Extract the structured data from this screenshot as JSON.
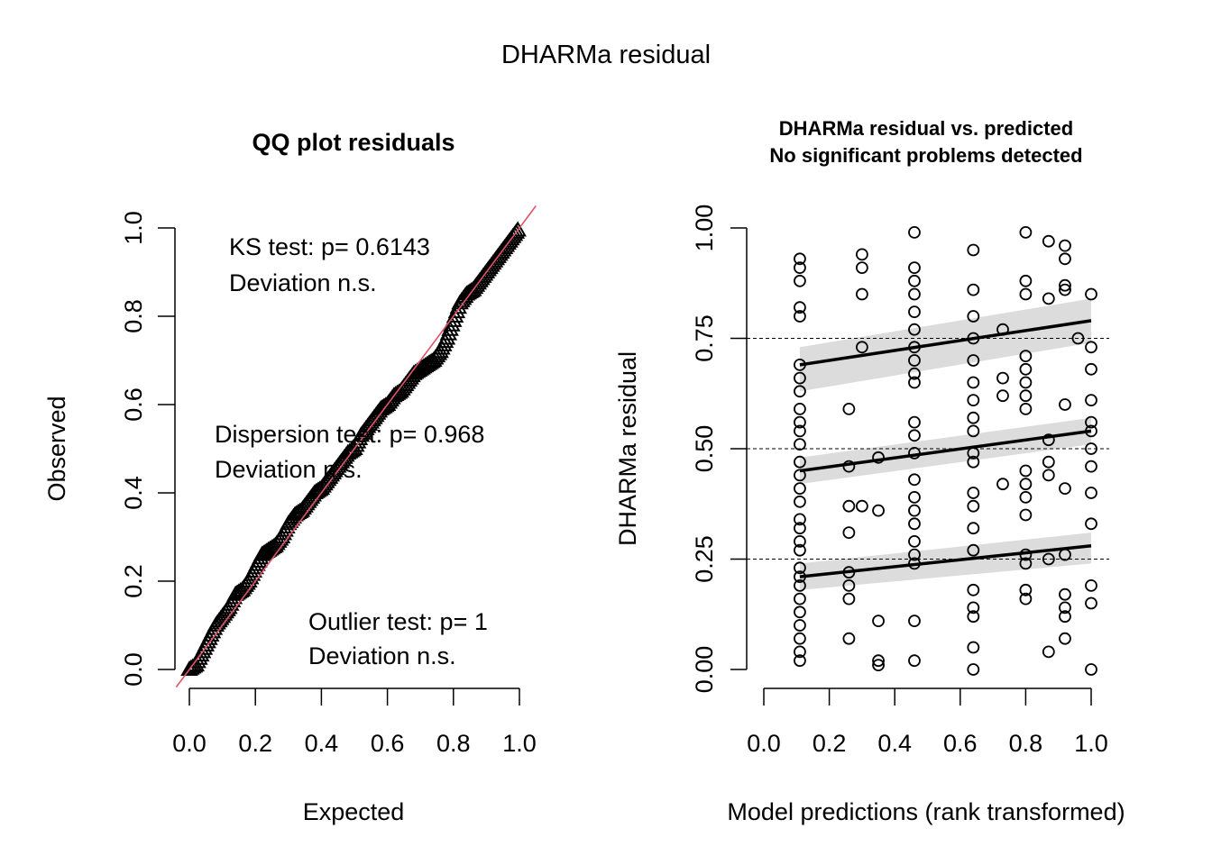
{
  "page_title": "DHARMa residual",
  "chart_data": [
    {
      "type": "scatter",
      "id": "qq",
      "title": "QQ plot residuals",
      "xlabel": "Expected",
      "ylabel": "Observed",
      "xlim": [
        0,
        1
      ],
      "ylim": [
        0,
        1
      ],
      "xticks": [
        "0.0",
        "0.2",
        "0.4",
        "0.6",
        "0.8",
        "1.0"
      ],
      "yticks": [
        "0.0",
        "0.2",
        "0.4",
        "0.6",
        "0.8",
        "1.0"
      ],
      "marker": "triangle",
      "reference_line": {
        "from": [
          0,
          0
        ],
        "to": [
          1,
          1
        ],
        "color": "#DF536B"
      },
      "expected": [
        0.0,
        0.02,
        0.04,
        0.06,
        0.08,
        0.1,
        0.12,
        0.14,
        0.16,
        0.18,
        0.2,
        0.22,
        0.24,
        0.26,
        0.28,
        0.3,
        0.32,
        0.34,
        0.36,
        0.38,
        0.4,
        0.42,
        0.44,
        0.46,
        0.48,
        0.5,
        0.52,
        0.54,
        0.56,
        0.58,
        0.6,
        0.62,
        0.64,
        0.66,
        0.68,
        0.7,
        0.72,
        0.74,
        0.76,
        0.78,
        0.8,
        0.82,
        0.84,
        0.86,
        0.88,
        0.9,
        0.92,
        0.94,
        0.96,
        0.98,
        1.0
      ],
      "observed": [
        0.0,
        0.01,
        0.04,
        0.07,
        0.1,
        0.12,
        0.14,
        0.17,
        0.18,
        0.2,
        0.23,
        0.26,
        0.27,
        0.28,
        0.3,
        0.33,
        0.35,
        0.36,
        0.38,
        0.4,
        0.41,
        0.43,
        0.45,
        0.47,
        0.49,
        0.5,
        0.53,
        0.55,
        0.57,
        0.59,
        0.6,
        0.62,
        0.63,
        0.65,
        0.67,
        0.68,
        0.69,
        0.7,
        0.72,
        0.75,
        0.79,
        0.83,
        0.85,
        0.86,
        0.88,
        0.9,
        0.92,
        0.94,
        0.96,
        0.98,
        1.0
      ],
      "annotations": [
        {
          "lines": [
            "KS test: p= 0.6143",
            "Deviation  n.s."
          ]
        },
        {
          "lines": [
            "Dispersion test: p= 0.968",
            "Deviation  n.s."
          ]
        },
        {
          "lines": [
            "Outlier test: p= 1",
            "Deviation  n.s."
          ]
        }
      ]
    },
    {
      "type": "scatter",
      "id": "resid",
      "title": "DHARMa residual vs. predicted",
      "subtitle": "No significant problems detected",
      "xlabel": "Model predictions (rank transformed)",
      "ylabel": "DHARMa residual",
      "xlim": [
        0,
        1
      ],
      "ylim": [
        0,
        1
      ],
      "xticks": [
        "0.0",
        "0.2",
        "0.4",
        "0.6",
        "0.8",
        "1.0"
      ],
      "yticks": [
        "0.00",
        "0.25",
        "0.50",
        "0.75",
        "1.00"
      ],
      "hlines": [
        0.25,
        0.5,
        0.75
      ],
      "marker": "open-circle",
      "points": [
        [
          0.11,
          0.93
        ],
        [
          0.11,
          0.91
        ],
        [
          0.11,
          0.88
        ],
        [
          0.11,
          0.82
        ],
        [
          0.11,
          0.8
        ],
        [
          0.11,
          0.69
        ],
        [
          0.11,
          0.66
        ],
        [
          0.11,
          0.63
        ],
        [
          0.11,
          0.59
        ],
        [
          0.11,
          0.56
        ],
        [
          0.11,
          0.54
        ],
        [
          0.11,
          0.51
        ],
        [
          0.11,
          0.47
        ],
        [
          0.11,
          0.44
        ],
        [
          0.11,
          0.41
        ],
        [
          0.11,
          0.38
        ],
        [
          0.11,
          0.34
        ],
        [
          0.11,
          0.32
        ],
        [
          0.11,
          0.29
        ],
        [
          0.11,
          0.27
        ],
        [
          0.11,
          0.23
        ],
        [
          0.11,
          0.21
        ],
        [
          0.11,
          0.19
        ],
        [
          0.11,
          0.16
        ],
        [
          0.11,
          0.13
        ],
        [
          0.11,
          0.1
        ],
        [
          0.11,
          0.07
        ],
        [
          0.11,
          0.04
        ],
        [
          0.11,
          0.02
        ],
        [
          0.26,
          0.59
        ],
        [
          0.26,
          0.46
        ],
        [
          0.26,
          0.37
        ],
        [
          0.26,
          0.31
        ],
        [
          0.26,
          0.22
        ],
        [
          0.26,
          0.19
        ],
        [
          0.26,
          0.16
        ],
        [
          0.26,
          0.07
        ],
        [
          0.3,
          0.94
        ],
        [
          0.3,
          0.91
        ],
        [
          0.3,
          0.85
        ],
        [
          0.3,
          0.73
        ],
        [
          0.3,
          0.37
        ],
        [
          0.35,
          0.48
        ],
        [
          0.35,
          0.36
        ],
        [
          0.35,
          0.11
        ],
        [
          0.35,
          0.02
        ],
        [
          0.35,
          0.01
        ],
        [
          0.46,
          0.99
        ],
        [
          0.46,
          0.91
        ],
        [
          0.46,
          0.88
        ],
        [
          0.46,
          0.85
        ],
        [
          0.46,
          0.81
        ],
        [
          0.46,
          0.77
        ],
        [
          0.46,
          0.73
        ],
        [
          0.46,
          0.7
        ],
        [
          0.46,
          0.67
        ],
        [
          0.46,
          0.65
        ],
        [
          0.46,
          0.56
        ],
        [
          0.46,
          0.53
        ],
        [
          0.46,
          0.49
        ],
        [
          0.46,
          0.43
        ],
        [
          0.46,
          0.39
        ],
        [
          0.46,
          0.36
        ],
        [
          0.46,
          0.33
        ],
        [
          0.46,
          0.29
        ],
        [
          0.46,
          0.26
        ],
        [
          0.46,
          0.24
        ],
        [
          0.46,
          0.11
        ],
        [
          0.46,
          0.02
        ],
        [
          0.64,
          0.95
        ],
        [
          0.64,
          0.86
        ],
        [
          0.64,
          0.8
        ],
        [
          0.64,
          0.75
        ],
        [
          0.64,
          0.7
        ],
        [
          0.64,
          0.65
        ],
        [
          0.64,
          0.61
        ],
        [
          0.64,
          0.57
        ],
        [
          0.64,
          0.54
        ],
        [
          0.64,
          0.49
        ],
        [
          0.64,
          0.47
        ],
        [
          0.64,
          0.4
        ],
        [
          0.64,
          0.37
        ],
        [
          0.64,
          0.32
        ],
        [
          0.64,
          0.27
        ],
        [
          0.64,
          0.18
        ],
        [
          0.64,
          0.14
        ],
        [
          0.64,
          0.12
        ],
        [
          0.64,
          0.05
        ],
        [
          0.64,
          0.0
        ],
        [
          0.73,
          0.77
        ],
        [
          0.73,
          0.66
        ],
        [
          0.73,
          0.62
        ],
        [
          0.73,
          0.42
        ],
        [
          0.8,
          0.99
        ],
        [
          0.8,
          0.88
        ],
        [
          0.8,
          0.85
        ],
        [
          0.8,
          0.71
        ],
        [
          0.8,
          0.68
        ],
        [
          0.8,
          0.65
        ],
        [
          0.8,
          0.62
        ],
        [
          0.8,
          0.59
        ],
        [
          0.8,
          0.45
        ],
        [
          0.8,
          0.42
        ],
        [
          0.8,
          0.39
        ],
        [
          0.8,
          0.35
        ],
        [
          0.8,
          0.26
        ],
        [
          0.8,
          0.24
        ],
        [
          0.8,
          0.18
        ],
        [
          0.8,
          0.16
        ],
        [
          0.87,
          0.97
        ],
        [
          0.87,
          0.84
        ],
        [
          0.87,
          0.52
        ],
        [
          0.87,
          0.47
        ],
        [
          0.87,
          0.44
        ],
        [
          0.87,
          0.25
        ],
        [
          0.87,
          0.04
        ],
        [
          0.92,
          0.96
        ],
        [
          0.92,
          0.93
        ],
        [
          0.92,
          0.87
        ],
        [
          0.92,
          0.86
        ],
        [
          0.92,
          0.6
        ],
        [
          0.92,
          0.41
        ],
        [
          0.92,
          0.26
        ],
        [
          0.92,
          0.17
        ],
        [
          0.92,
          0.14
        ],
        [
          0.92,
          0.12
        ],
        [
          0.92,
          0.07
        ],
        [
          0.96,
          0.75
        ],
        [
          1.0,
          0.85
        ],
        [
          1.0,
          0.73
        ],
        [
          1.0,
          0.68
        ],
        [
          1.0,
          0.61
        ],
        [
          1.0,
          0.56
        ],
        [
          1.0,
          0.54
        ],
        [
          1.0,
          0.5
        ],
        [
          1.0,
          0.46
        ],
        [
          1.0,
          0.4
        ],
        [
          1.0,
          0.33
        ],
        [
          1.0,
          0.19
        ],
        [
          1.0,
          0.15
        ],
        [
          1.0,
          0.0
        ]
      ],
      "quantile_fits": [
        {
          "quantile": 0.25,
          "x": [
            0.11,
            1.0
          ],
          "y": [
            0.21,
            0.28
          ],
          "ci_low": [
            0.18,
            0.24
          ],
          "ci_high": [
            0.24,
            0.31
          ]
        },
        {
          "quantile": 0.5,
          "x": [
            0.11,
            1.0
          ],
          "y": [
            0.45,
            0.54
          ],
          "ci_low": [
            0.42,
            0.51
          ],
          "ci_high": [
            0.48,
            0.57
          ]
        },
        {
          "quantile": 0.75,
          "x": [
            0.11,
            1.0
          ],
          "y": [
            0.69,
            0.79
          ],
          "ci_low": [
            0.63,
            0.74
          ],
          "ci_high": [
            0.73,
            0.84
          ]
        }
      ]
    }
  ]
}
